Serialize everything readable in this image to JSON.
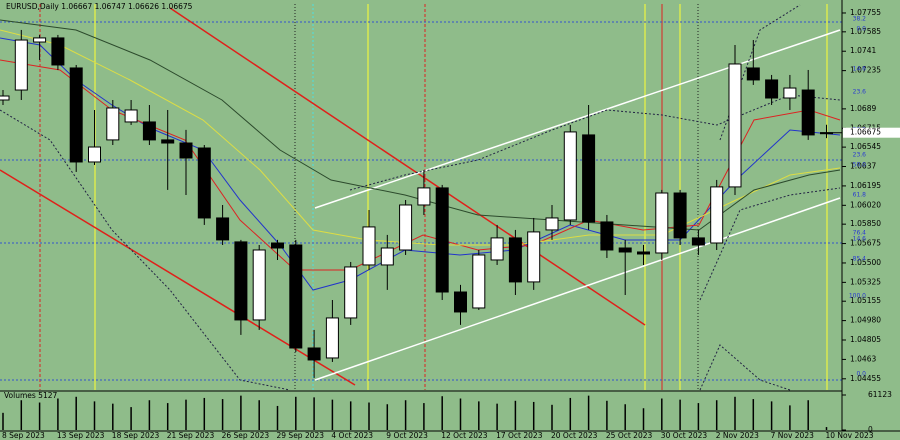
{
  "chart_data": {
    "type": "candlestick",
    "title": "EURUSD,Daily  1.06667 1.06747 1.06626 1.06675",
    "categories": [
      "8 Sep 2023",
      null,
      null,
      "13 Sep 2023",
      null,
      null,
      "18 Sep 2023",
      null,
      null,
      "21 Sep 2023",
      null,
      null,
      "26 Sep 2023",
      null,
      null,
      "29 Sep 2023",
      null,
      null,
      "4 Oct 2023",
      null,
      null,
      "9 Oct 2023",
      null,
      null,
      "12 Oct 2023",
      null,
      null,
      "17 Oct 2023",
      null,
      null,
      "20 Oct 2023",
      null,
      null,
      "25 Oct 2023",
      null,
      null,
      "30 Oct 2023",
      null,
      null,
      "2 Nov 2023",
      null,
      null,
      "7 Nov 2023",
      null,
      null,
      "10 Nov 2023"
    ],
    "open": [
      1.0697,
      1.0706,
      1.07493,
      1.0753,
      1.07259,
      1.06411,
      1.0661,
      1.06772,
      1.06772,
      1.0661,
      1.06582,
      1.06537,
      1.05906,
      1.0569,
      1.04986,
      1.0568,
      1.05662,
      1.04733,
      1.04643,
      1.05004,
      1.05482,
      1.05482,
      1.05617,
      1.06023,
      1.06177,
      1.05238,
      1.05094,
      1.05527,
      1.05726,
      1.05329,
      1.05798,
      1.05888,
      1.06655,
      1.0587,
      1.05635,
      1.05599,
      1.0559,
      1.06131,
      1.05726,
      1.0568,
      1.06186,
      1.07259,
      1.07151,
      1.06988,
      1.0706,
      1.06667
    ],
    "high": [
      1.0706,
      1.07602,
      1.07557,
      1.07557,
      1.07286,
      1.0688,
      1.0697,
      1.0697,
      1.06925,
      1.0688,
      1.067,
      1.06564,
      1.06023,
      1.05708,
      1.05662,
      1.05708,
      1.05708,
      1.04896,
      1.05166,
      1.05509,
      1.05978,
      1.05753,
      1.06068,
      1.06339,
      1.06204,
      1.05302,
      1.05617,
      1.05843,
      1.05798,
      1.05906,
      1.06023,
      1.06745,
      1.06925,
      1.05933,
      1.05708,
      1.05662,
      1.06159,
      1.06159,
      1.05798,
      1.06249,
      1.07466,
      1.07511,
      1.07196,
      1.07196,
      1.07241,
      1.06747
    ],
    "low": [
      1.06925,
      1.0697,
      1.07331,
      1.07241,
      1.06321,
      1.06384,
      1.06564,
      1.06745,
      1.06564,
      1.06159,
      1.06113,
      1.05843,
      1.05662,
      1.04851,
      1.04896,
      1.05527,
      1.04697,
      1.04463,
      1.04607,
      1.04941,
      1.05437,
      1.05257,
      1.05572,
      1.05933,
      1.05166,
      1.04941,
      1.05076,
      1.05482,
      1.05211,
      1.05257,
      1.05708,
      1.05843,
      1.05798,
      1.05545,
      1.05211,
      1.05482,
      1.05527,
      1.05662,
      1.05572,
      1.05617,
      1.06113,
      1.07106,
      1.06925,
      1.0688,
      1.0661,
      1.06626
    ],
    "close": [
      1.07006,
      1.07511,
      1.0753,
      1.07286,
      1.06411,
      1.06546,
      1.06898,
      1.0688,
      1.0661,
      1.06582,
      1.06447,
      1.05906,
      1.05708,
      1.04986,
      1.05617,
      1.05635,
      1.04733,
      1.04625,
      1.05004,
      1.05464,
      1.05825,
      1.05635,
      1.06023,
      1.06177,
      1.05238,
      1.05058,
      1.05572,
      1.05726,
      1.05329,
      1.0578,
      1.05906,
      1.06682,
      1.0587,
      1.05617,
      1.05599,
      1.05581,
      1.06131,
      1.05726,
      1.05662,
      1.06186,
      1.07295,
      1.07151,
      1.06988,
      1.07078,
      1.06655,
      1.06675
    ],
    "volumes": [
      30000,
      52000,
      48000,
      55000,
      58000,
      50000,
      46000,
      40000,
      52000,
      47000,
      53000,
      56000,
      54000,
      60000,
      52000,
      42000,
      58000,
      57000,
      53000,
      50000,
      48000,
      45000,
      52000,
      47000,
      59000,
      55000,
      50000,
      46000,
      51000,
      49000,
      44000,
      56000,
      60000,
      51000,
      45000,
      38000,
      55000,
      53000,
      47000,
      52000,
      58000,
      54000,
      50000,
      43000,
      52000,
      5127
    ],
    "up_color": "#ffffff",
    "down_color": "#000000",
    "ylim": [
      1.04354,
      1.07836
    ],
    "yticks": [
      1.07755,
      1.07585,
      1.0741,
      1.07235,
      1.0689,
      1.06715,
      1.06545,
      1.0637,
      1.06195,
      {
        "value": 1.0602,
        "label": "1.06020"
      },
      {
        "value": 1.0585,
        "label": "1.05850"
      },
      1.05675,
      {
        "value": 1.055,
        "label": "1.05500"
      },
      1.05325,
      1.05155,
      {
        "value": 1.0498,
        "label": "1.04980"
      },
      1.04805,
      1.0463,
      1.04455
    ],
    "levels": [
      {
        "value": 1.07674,
        "label": "38.2"
      },
      {
        "value": 1.07584,
        "label": "0.0"
      },
      {
        "value": 1.07223,
        "label": "14.6"
      },
      {
        "value": 1.07015,
        "label": "23.6"
      },
      {
        "value": 1.06673,
        "label": "38.2"
      },
      {
        "value": 1.06447,
        "label": "23.6"
      },
      {
        "value": 1.06357,
        "label": "50.0"
      },
      {
        "value": 1.06086,
        "label": "61.8"
      },
      {
        "value": 1.05744,
        "label": "76.4"
      },
      {
        "value": 1.0569,
        "label": "14.6"
      },
      {
        "value": 1.05509,
        "label": "85.4"
      },
      {
        "value": 1.05175,
        "label": "100.0"
      },
      {
        "value": 1.04472,
        "label": "0.0"
      }
    ],
    "volume_label": "Volumes 5127",
    "vlim": [
      0,
      61123
    ],
    "vticks": [
      61123,
      0
    ]
  }
}
